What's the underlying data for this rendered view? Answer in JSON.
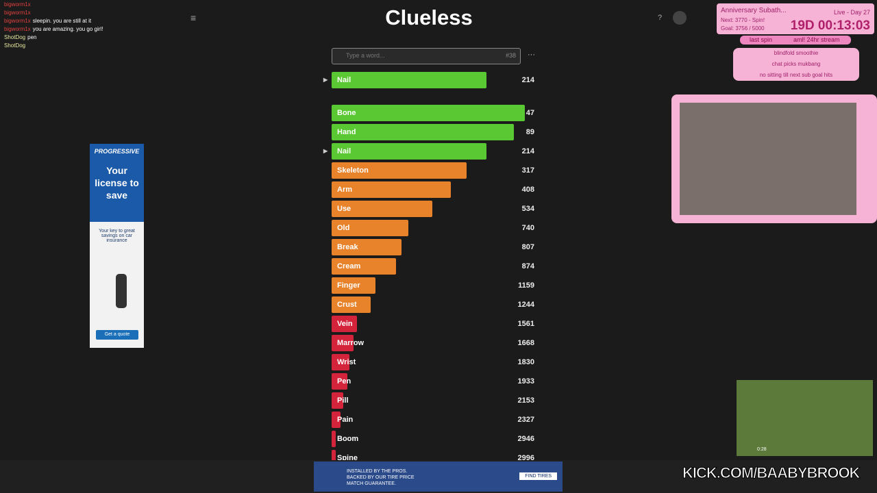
{
  "chat": [
    {
      "user": "bigworm1x",
      "text": ""
    },
    {
      "user": "bigworm1x",
      "text": ""
    },
    {
      "user": "bigworm1x",
      "text": "sleepin. you are still at it"
    },
    {
      "user": "bigworm1x",
      "text": "you are amazing. you go girl!"
    },
    {
      "user": "ShotDog",
      "text": "pen"
    },
    {
      "user": "ShotDog",
      "text": ""
    }
  ],
  "game": {
    "title": "Clueless",
    "placeholder": "Type a word...",
    "guess_count": "#38",
    "menu": "···",
    "last_guess": {
      "word": "Nail",
      "rank": 214,
      "color": "#5ac832"
    },
    "guesses": [
      {
        "word": "Bone",
        "rank": 47,
        "color": "#5ac832"
      },
      {
        "word": "Hand",
        "rank": 89,
        "color": "#5ac832"
      },
      {
        "word": "Nail",
        "rank": 214,
        "color": "#5ac832"
      },
      {
        "word": "Skeleton",
        "rank": 317,
        "color": "#e8832b"
      },
      {
        "word": "Arm",
        "rank": 408,
        "color": "#e8832b"
      },
      {
        "word": "Use",
        "rank": 534,
        "color": "#e8832b"
      },
      {
        "word": "Old",
        "rank": 740,
        "color": "#e8832b"
      },
      {
        "word": "Break",
        "rank": 807,
        "color": "#e8832b"
      },
      {
        "word": "Cream",
        "rank": 874,
        "color": "#e8832b"
      },
      {
        "word": "Finger",
        "rank": 1159,
        "color": "#e8832b"
      },
      {
        "word": "Crust",
        "rank": 1244,
        "color": "#e8832b"
      },
      {
        "word": "Vein",
        "rank": 1561,
        "color": "#d4243b"
      },
      {
        "word": "Marrow",
        "rank": 1668,
        "color": "#d4243b"
      },
      {
        "word": "Wrist",
        "rank": 1830,
        "color": "#d4243b"
      },
      {
        "word": "Pen",
        "rank": 1933,
        "color": "#d4243b"
      },
      {
        "word": "Pill",
        "rank": 2153,
        "color": "#d4243b"
      },
      {
        "word": "Pain",
        "rank": 2327,
        "color": "#d4243b"
      },
      {
        "word": "Boom",
        "rank": 2946,
        "color": "#d4243b"
      },
      {
        "word": "Spine",
        "rank": 2996,
        "color": "#d4243b"
      }
    ]
  },
  "ad_left": {
    "brand": "PROGRESSIVE",
    "headline": "Your license to save",
    "sub": "Your key to great savings on car insurance",
    "button": "Get a quote"
  },
  "overlay": {
    "title": "Anniversary Subath...",
    "live": "Live - Day 27",
    "next": "Next: 3770 - Spin!",
    "goal": "Goal: 3756 / 5000",
    "timer": "19D 00:13:03",
    "last_spin": "last spin",
    "spin_result": "aml! 24hr stream",
    "list": [
      "blindfold smoothie",
      "chat picks mukbang",
      "no sitting till next sub goal hits"
    ]
  },
  "video": {
    "time": "0:28"
  },
  "ad_bottom": {
    "text": "INSTALLED BY THE PROS. BACKED BY OUR TIRE PRICE MATCH GUARANTEE.",
    "button": "FIND TIRES"
  },
  "kick": "KICK.COM/BAABYBROOK"
}
